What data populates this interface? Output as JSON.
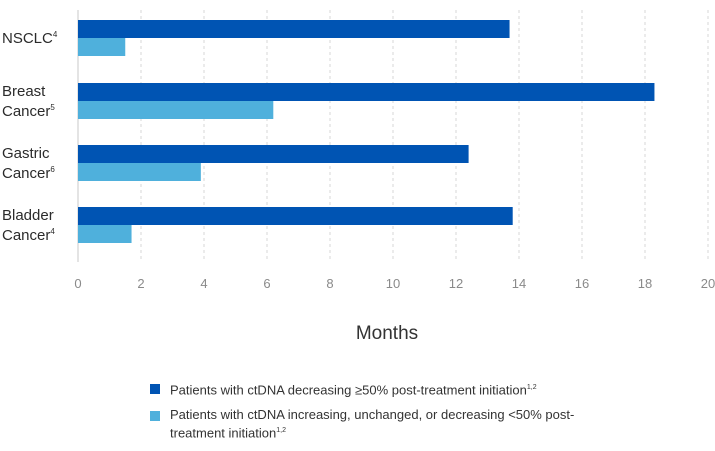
{
  "chart_data": {
    "type": "bar",
    "orientation": "horizontal",
    "categories": [
      {
        "label_lines": [
          "NSCLC"
        ],
        "sup": "4"
      },
      {
        "label_lines": [
          "Breast",
          "Cancer"
        ],
        "sup": "5"
      },
      {
        "label_lines": [
          "Gastric",
          "Cancer"
        ],
        "sup": "6"
      },
      {
        "label_lines": [
          "Bladder",
          "Cancer"
        ],
        "sup": "4"
      }
    ],
    "series": [
      {
        "name": "Patients with ctDNA decreasing ≥50% post-treatment initiation",
        "name_sup": "1,2",
        "color": "#0054b3",
        "values": [
          13.7,
          18.3,
          12.4,
          13.8
        ]
      },
      {
        "name": "Patients with ctDNA increasing, unchanged, or decreasing <50% post-treatment initiation",
        "name_sup": "1,2",
        "color": "#4fb0dc",
        "values": [
          1.5,
          6.2,
          3.9,
          1.7
        ]
      }
    ],
    "xlabel": "Months",
    "ylabel": "",
    "xlim": [
      0,
      20
    ],
    "xticks": [
      0,
      2,
      4,
      6,
      8,
      10,
      12,
      14,
      16,
      18,
      20
    ],
    "grid": true,
    "legend_position": "bottom"
  }
}
